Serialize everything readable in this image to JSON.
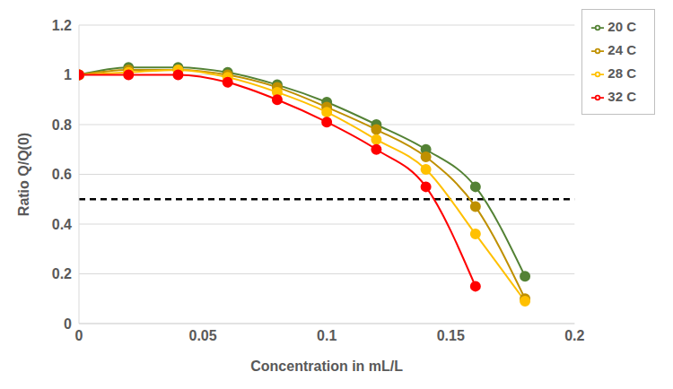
{
  "chart_data": {
    "type": "line",
    "x_label": "Concentration in mL/L",
    "y_label": "Ratio Q/Q(0)",
    "x": [
      0,
      0.02,
      0.04,
      0.06,
      0.08,
      0.1,
      0.12,
      0.14,
      0.16,
      0.18
    ],
    "series": [
      {
        "name": "20 C",
        "color": "#548235",
        "values": [
          1,
          1.03,
          1.03,
          1.01,
          0.96,
          0.89,
          0.8,
          0.7,
          0.55,
          0.19
        ]
      },
      {
        "name": "24 C",
        "color": "#bf9000",
        "values": [
          1,
          1.02,
          1.02,
          1.0,
          0.95,
          0.87,
          0.78,
          0.67,
          0.47,
          0.1
        ]
      },
      {
        "name": "28 C",
        "color": "#ffc000",
        "values": [
          1,
          1.01,
          1.02,
          0.99,
          0.93,
          0.85,
          0.74,
          0.62,
          0.36,
          0.09
        ]
      },
      {
        "name": "32 C",
        "color": "#ff0000",
        "values": [
          1,
          1.0,
          1.0,
          0.97,
          0.9,
          0.81,
          0.7,
          0.55,
          0.15,
          null
        ]
      }
    ],
    "xlim": [
      0,
      0.2
    ],
    "xticks": [
      0,
      0.05,
      0.1,
      0.15,
      0.2
    ],
    "ylim": [
      0,
      1.2
    ],
    "yticks": [
      0,
      0.2,
      0.4,
      0.6,
      0.8,
      1,
      1.2
    ],
    "hline": 0.5,
    "grid": true,
    "legend": "upper right",
    "marker": "circle",
    "line_style": "smooth"
  }
}
